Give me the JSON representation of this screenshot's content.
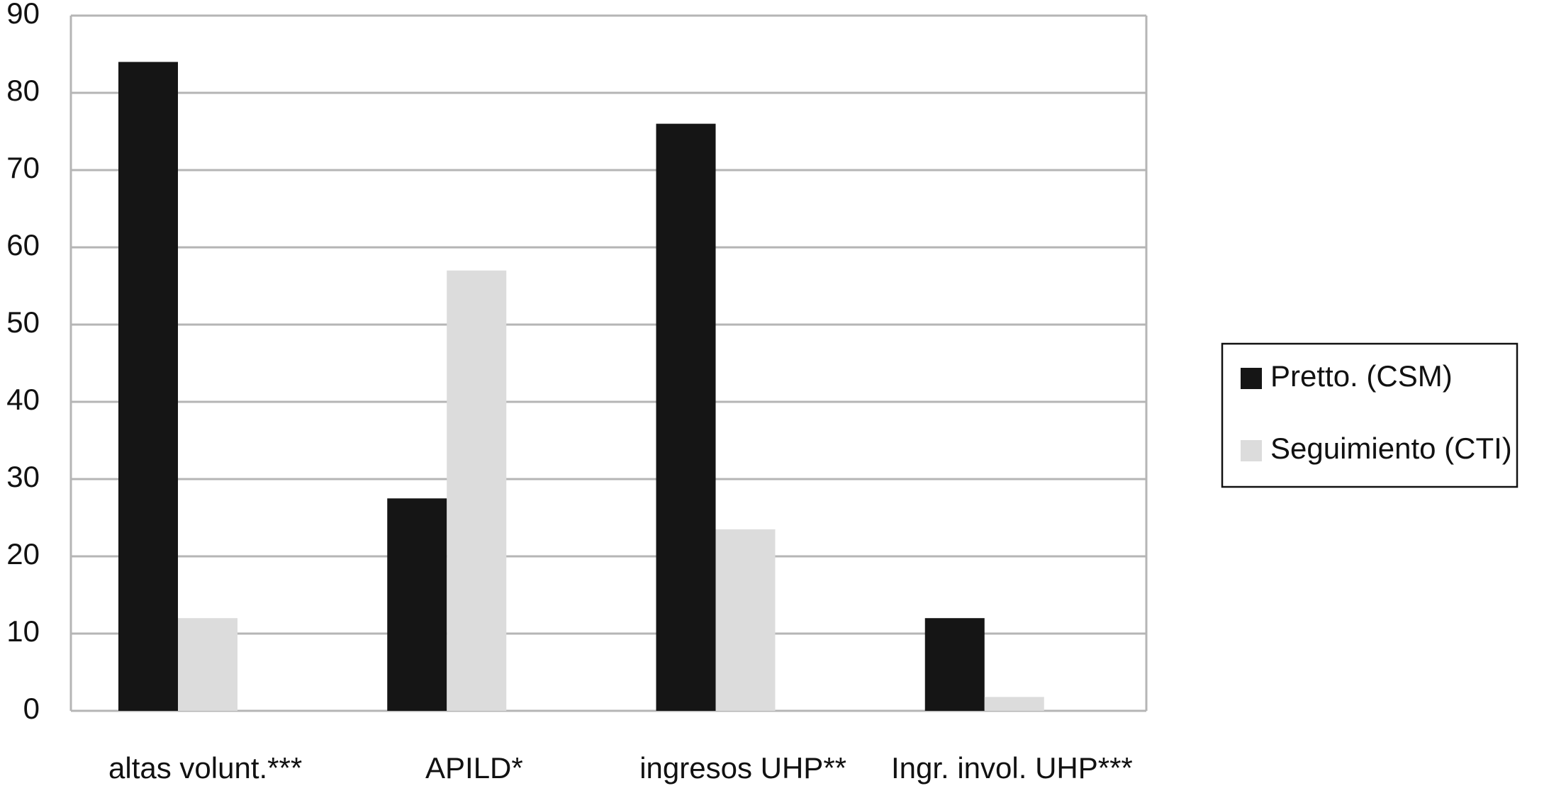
{
  "chart_data": {
    "type": "bar",
    "categories": [
      "altas volunt.***",
      "APILD*",
      "ingresos UHP**",
      "Ingr. invol. UHP***"
    ],
    "series": [
      {
        "name": "Pretto. (CSM)",
        "color": "#151515",
        "values": [
          84,
          27.5,
          76,
          12
        ]
      },
      {
        "name": "Seguimiento (CTI)",
        "color": "#dcdcdc",
        "values": [
          12,
          57,
          23.5,
          1.8
        ]
      }
    ],
    "ylim": [
      0,
      90
    ],
    "yticks": [
      0,
      10,
      20,
      30,
      40,
      50,
      60,
      70,
      80,
      90
    ],
    "grid": true,
    "legend": "right"
  }
}
